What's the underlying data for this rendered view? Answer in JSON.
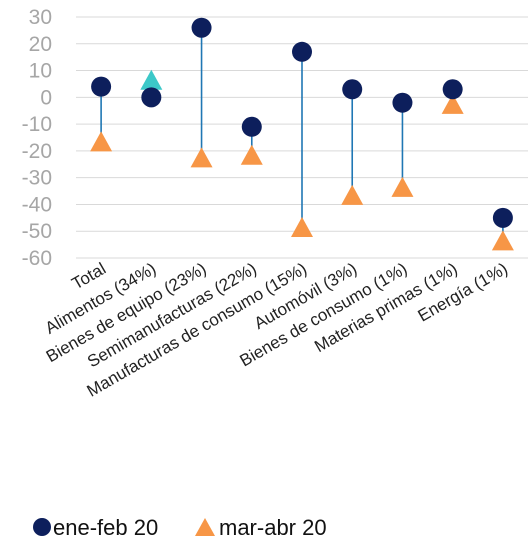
{
  "chart_data": {
    "type": "dot",
    "categories": [
      "Total",
      "Alimentos (34%)",
      "Bienes de equipo (23%)",
      "Semimanufacturas (22%)",
      "Manufacturas de consumo (15%)",
      "Automóvil (3%)",
      "Bienes de consumo (1%)",
      "Materias primas (1%)",
      "Energía (1%)"
    ],
    "series": [
      {
        "name": "ene-feb 20",
        "marker": "circle",
        "color": "#0d1f5c",
        "values": [
          4,
          0,
          26,
          -11,
          17,
          3,
          -2,
          3,
          -45
        ]
      },
      {
        "name": "mar-abr 20",
        "marker": "triangle",
        "color": "#f79646",
        "values": [
          -17,
          6,
          -23,
          -22,
          -49,
          -37,
          -34,
          -3,
          -54
        ]
      }
    ],
    "highlight_color": "#3cc8c8",
    "connector_color": "#1f77b4",
    "ylim": [
      -60,
      30
    ],
    "yticks": [
      30,
      20,
      10,
      0,
      -10,
      -20,
      -30,
      -40,
      -50,
      -60
    ],
    "grid": true,
    "legend_position": "bottom-left"
  }
}
